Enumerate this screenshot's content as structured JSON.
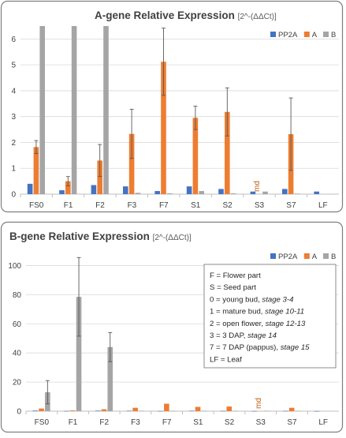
{
  "colors": {
    "PP2A": "#4472c4",
    "A": "#ed7d31",
    "B": "#a5a5a5",
    "error_bar": "#595959",
    "gridline": "#d9d9d9",
    "panel_border": "#7f7f7f",
    "md_text": "#c55a11"
  },
  "chart_data": [
    {
      "type": "bar",
      "title": "A-gene Relative Expression",
      "title_suffix": "[2^-(ΔΔCt)]",
      "xlabel": "",
      "ylabel": "",
      "ylim": [
        0,
        6.5
      ],
      "yticks": [
        0,
        1,
        2,
        3,
        4,
        5,
        6
      ],
      "grid": true,
      "legend_position": "top-right",
      "categories": [
        "FS0",
        "F1",
        "F2",
        "F3",
        "F7",
        "S1",
        "S2",
        "S3",
        "S7",
        "LF"
      ],
      "series": [
        {
          "name": "PP2A",
          "values": [
            0.4,
            0.15,
            0.35,
            0.3,
            0.12,
            0.3,
            0.2,
            0.1,
            0.2,
            0.1
          ]
        },
        {
          "name": "A",
          "values": [
            1.82,
            0.5,
            1.3,
            2.33,
            5.12,
            2.95,
            3.18,
            null,
            2.32,
            null
          ],
          "errors": [
            0.25,
            0.18,
            0.62,
            0.95,
            1.3,
            0.45,
            0.93,
            null,
            1.4,
            null
          ]
        },
        {
          "name": "B",
          "values": [
            6.5,
            6.5,
            6.5,
            0.05,
            0.03,
            0.12,
            0.03,
            0.1,
            0.02,
            null
          ]
        }
      ],
      "annotations": [
        {
          "category": "S3",
          "series": "A",
          "text": "md"
        }
      ]
    },
    {
      "type": "bar",
      "title": "B-gene Relative Expression",
      "title_suffix": "[2^-(ΔΔCt)]",
      "xlabel": "",
      "ylabel": "",
      "ylim": [
        0,
        110
      ],
      "yticks": [
        0,
        20,
        40,
        60,
        80,
        100
      ],
      "grid": true,
      "legend_position": "top-right",
      "categories": [
        "FS0",
        "F1",
        "F2",
        "F3",
        "F7",
        "S1",
        "S2",
        "S3",
        "S7",
        "LF"
      ],
      "series": [
        {
          "name": "PP2A",
          "values": [
            0.4,
            0.15,
            0.35,
            0.3,
            0.12,
            0.3,
            0.2,
            0.1,
            0.2,
            0.1
          ]
        },
        {
          "name": "A",
          "values": [
            1.82,
            0.5,
            1.3,
            2.33,
            5.12,
            2.95,
            3.18,
            null,
            2.32,
            null
          ]
        },
        {
          "name": "B",
          "values": [
            13,
            78.5,
            44,
            0.3,
            0.2,
            0.3,
            0.2,
            0.3,
            0.2,
            null
          ],
          "errors": [
            8,
            27,
            10,
            null,
            null,
            null,
            null,
            null,
            null,
            null
          ]
        }
      ],
      "annotations": [
        {
          "category": "S3",
          "series": "A",
          "text": "md"
        }
      ],
      "key_box": [
        {
          "text": "F = Flower part"
        },
        {
          "text": "S = Seed part"
        },
        {
          "text": "0 = young bud, ",
          "italic": "stage 3-4"
        },
        {
          "text": "1 = mature bud, ",
          "italic": "stage 10-11"
        },
        {
          "text": "2 = open flower, ",
          "italic": "stage 12-13"
        },
        {
          "text": "3 = 3 DAP, ",
          "italic": "stage 14"
        },
        {
          "text": "7 = 7 DAP (pappus), ",
          "italic": "stage 15"
        },
        {
          "text": "LF = Leaf"
        }
      ]
    }
  ]
}
